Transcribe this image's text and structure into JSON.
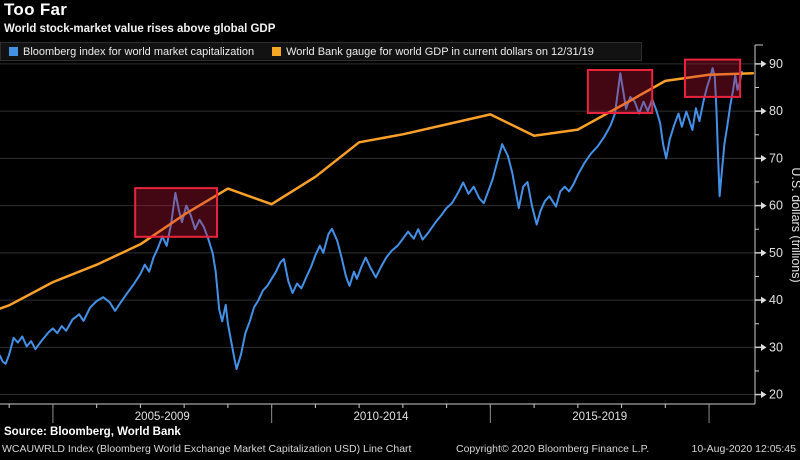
{
  "header": {
    "title": "Too Far",
    "subtitle": "World stock-market value rises above global GDP"
  },
  "legend": {
    "items": [
      {
        "label": "Bloomberg index for world market capitalization",
        "color": "#4490e6"
      },
      {
        "label": "World Bank gauge for world GDP in current dollars on 12/31/19",
        "color": "#f5a623"
      }
    ]
  },
  "footer": {
    "source": "Source: Bloomberg, World Bank",
    "description": "WCAUWRLD Index (Bloomberg World Exchange Market Capitalization USD) Line Chart",
    "copyright": "Copyright© 2020 Bloomberg Finance L.P.",
    "timestamp": "10-Aug-2020 12:05:45"
  },
  "colors": {
    "background": "#000000",
    "grid": "#2f2f2f",
    "axis": "#cccccc",
    "tick_text": "#e0e0e0",
    "separator": "#8a8a8a",
    "box_stroke": "#e8243c",
    "box_fill": "rgba(205,22,56,0.32)"
  },
  "chart_data": {
    "type": "line",
    "title": "Too Far",
    "subtitle": "World stock-market value rises above global GDP",
    "ylabel": "U.S. dollars (trillions)",
    "grid": true,
    "legend_position": "top",
    "x_domain": [
      2003.79,
      2021.05
    ],
    "ylim": [
      18,
      94
    ],
    "y_ticks": [
      20,
      30,
      40,
      50,
      60,
      70,
      80,
      90
    ],
    "y_minor_ticks": [
      25,
      35,
      45,
      55,
      65,
      75,
      85
    ],
    "x_axis": {
      "separators": [
        2005,
        2010,
        2015,
        2020
      ],
      "year_ticks": [
        2004,
        2005,
        2006,
        2007,
        2008,
        2009,
        2010,
        2011,
        2012,
        2013,
        2014,
        2015,
        2016,
        2017,
        2018,
        2019,
        2020
      ],
      "periods": [
        {
          "label": "2005-2009",
          "start": 2005,
          "end": 2010
        },
        {
          "label": "2010-2014",
          "start": 2010,
          "end": 2015
        },
        {
          "label": "2015-2019",
          "start": 2015,
          "end": 2020
        }
      ]
    },
    "highlight_boxes": [
      {
        "x0": 2006.88,
        "x1": 2008.75,
        "y0": 53.4,
        "y1": 63.7
      },
      {
        "x0": 2017.23,
        "x1": 2018.7,
        "y0": 79.6,
        "y1": 88.7
      },
      {
        "x0": 2019.45,
        "x1": 2020.71,
        "y0": 83.0,
        "y1": 90.9
      }
    ],
    "series": [
      {
        "name": "Bloomberg index for world market capitalization",
        "color": "#4490e6",
        "width": 2,
        "points": [
          [
            2003.79,
            28.2
          ],
          [
            2003.85,
            27.0
          ],
          [
            2003.92,
            26.5
          ],
          [
            2004.0,
            28.5
          ],
          [
            2004.1,
            32.0
          ],
          [
            2004.2,
            31.0
          ],
          [
            2004.3,
            32.3
          ],
          [
            2004.4,
            30.2
          ],
          [
            2004.5,
            31.3
          ],
          [
            2004.6,
            29.6
          ],
          [
            2004.75,
            31.5
          ],
          [
            2004.9,
            33.2
          ],
          [
            2005.0,
            34.0
          ],
          [
            2005.1,
            33.0
          ],
          [
            2005.2,
            34.5
          ],
          [
            2005.3,
            33.5
          ],
          [
            2005.45,
            35.9
          ],
          [
            2005.6,
            37.0
          ],
          [
            2005.7,
            35.6
          ],
          [
            2005.85,
            38.4
          ],
          [
            2006.0,
            39.8
          ],
          [
            2006.15,
            40.6
          ],
          [
            2006.3,
            39.5
          ],
          [
            2006.42,
            37.7
          ],
          [
            2006.55,
            39.5
          ],
          [
            2006.7,
            41.5
          ],
          [
            2006.85,
            43.4
          ],
          [
            2007.0,
            45.5
          ],
          [
            2007.1,
            47.5
          ],
          [
            2007.2,
            46.0
          ],
          [
            2007.3,
            49.0
          ],
          [
            2007.4,
            51.0
          ],
          [
            2007.5,
            53.5
          ],
          [
            2007.6,
            51.5
          ],
          [
            2007.7,
            56.0
          ],
          [
            2007.8,
            62.7
          ],
          [
            2007.88,
            59.0
          ],
          [
            2007.95,
            56.5
          ],
          [
            2008.05,
            60.0
          ],
          [
            2008.15,
            58.0
          ],
          [
            2008.25,
            55.0
          ],
          [
            2008.35,
            57.0
          ],
          [
            2008.45,
            55.5
          ],
          [
            2008.55,
            53.0
          ],
          [
            2008.65,
            50.0
          ],
          [
            2008.72,
            46.0
          ],
          [
            2008.8,
            38.0
          ],
          [
            2008.87,
            35.5
          ],
          [
            2008.95,
            39.0
          ],
          [
            2009.0,
            35.0
          ],
          [
            2009.08,
            31.0
          ],
          [
            2009.15,
            27.5
          ],
          [
            2009.2,
            25.4
          ],
          [
            2009.3,
            28.5
          ],
          [
            2009.4,
            33.0
          ],
          [
            2009.5,
            35.5
          ],
          [
            2009.6,
            38.5
          ],
          [
            2009.7,
            40.0
          ],
          [
            2009.8,
            42.0
          ],
          [
            2009.9,
            43.0
          ],
          [
            2010.0,
            44.5
          ],
          [
            2010.1,
            46.0
          ],
          [
            2010.2,
            48.0
          ],
          [
            2010.28,
            48.7
          ],
          [
            2010.38,
            44.0
          ],
          [
            2010.48,
            41.5
          ],
          [
            2010.58,
            43.5
          ],
          [
            2010.68,
            42.5
          ],
          [
            2010.8,
            45.0
          ],
          [
            2010.9,
            47.0
          ],
          [
            2011.0,
            49.5
          ],
          [
            2011.1,
            51.5
          ],
          [
            2011.18,
            50.0
          ],
          [
            2011.3,
            54.0
          ],
          [
            2011.38,
            55.1
          ],
          [
            2011.5,
            52.5
          ],
          [
            2011.6,
            49.0
          ],
          [
            2011.7,
            45.0
          ],
          [
            2011.78,
            43.0
          ],
          [
            2011.88,
            46.0
          ],
          [
            2011.95,
            44.5
          ],
          [
            2012.05,
            47.0
          ],
          [
            2012.15,
            49.0
          ],
          [
            2012.25,
            47.0
          ],
          [
            2012.38,
            44.8
          ],
          [
            2012.5,
            47.0
          ],
          [
            2012.62,
            49.0
          ],
          [
            2012.75,
            50.5
          ],
          [
            2012.88,
            51.5
          ],
          [
            2013.0,
            53.0
          ],
          [
            2013.12,
            54.5
          ],
          [
            2013.25,
            53.0
          ],
          [
            2013.35,
            55.0
          ],
          [
            2013.45,
            52.8
          ],
          [
            2013.6,
            54.5
          ],
          [
            2013.75,
            56.5
          ],
          [
            2013.88,
            58.0
          ],
          [
            2014.0,
            59.5
          ],
          [
            2014.12,
            60.5
          ],
          [
            2014.25,
            62.5
          ],
          [
            2014.38,
            64.9
          ],
          [
            2014.5,
            62.5
          ],
          [
            2014.62,
            64.0
          ],
          [
            2014.75,
            61.5
          ],
          [
            2014.85,
            60.5
          ],
          [
            2014.95,
            63.0
          ],
          [
            2015.05,
            65.5
          ],
          [
            2015.15,
            69.0
          ],
          [
            2015.27,
            73.0
          ],
          [
            2015.4,
            70.5
          ],
          [
            2015.5,
            67.0
          ],
          [
            2015.58,
            63.0
          ],
          [
            2015.65,
            59.5
          ],
          [
            2015.75,
            64.0
          ],
          [
            2015.85,
            65.0
          ],
          [
            2015.95,
            60.0
          ],
          [
            2016.06,
            56.0
          ],
          [
            2016.15,
            59.0
          ],
          [
            2016.25,
            61.0
          ],
          [
            2016.35,
            62.0
          ],
          [
            2016.45,
            60.5
          ],
          [
            2016.5,
            59.8
          ],
          [
            2016.6,
            63.0
          ],
          [
            2016.7,
            64.0
          ],
          [
            2016.8,
            63.0
          ],
          [
            2016.9,
            64.5
          ],
          [
            2017.0,
            66.5
          ],
          [
            2017.15,
            69.0
          ],
          [
            2017.3,
            71.0
          ],
          [
            2017.45,
            72.5
          ],
          [
            2017.6,
            74.5
          ],
          [
            2017.75,
            77.0
          ],
          [
            2017.85,
            79.5
          ],
          [
            2017.97,
            88.0
          ],
          [
            2018.05,
            83.5
          ],
          [
            2018.1,
            80.5
          ],
          [
            2018.2,
            83.0
          ],
          [
            2018.3,
            82.0
          ],
          [
            2018.4,
            79.5
          ],
          [
            2018.5,
            82.0
          ],
          [
            2018.6,
            80.0
          ],
          [
            2018.7,
            82.5
          ],
          [
            2018.8,
            80.0
          ],
          [
            2018.88,
            77.5
          ],
          [
            2018.95,
            73.0
          ],
          [
            2019.02,
            70.0
          ],
          [
            2019.1,
            74.0
          ],
          [
            2019.2,
            77.0
          ],
          [
            2019.3,
            79.5
          ],
          [
            2019.38,
            76.7
          ],
          [
            2019.48,
            79.9
          ],
          [
            2019.55,
            78.0
          ],
          [
            2019.62,
            76.0
          ],
          [
            2019.7,
            80.6
          ],
          [
            2019.78,
            77.9
          ],
          [
            2019.88,
            82.4
          ],
          [
            2019.95,
            85.0
          ],
          [
            2020.02,
            87.0
          ],
          [
            2020.08,
            89.1
          ],
          [
            2020.13,
            87.2
          ],
          [
            2020.17,
            80.0
          ],
          [
            2020.2,
            72.0
          ],
          [
            2020.24,
            62.0
          ],
          [
            2020.3,
            68.0
          ],
          [
            2020.35,
            73.0
          ],
          [
            2020.42,
            77.0
          ],
          [
            2020.48,
            81.0
          ],
          [
            2020.55,
            84.5
          ],
          [
            2020.6,
            87.6
          ],
          [
            2020.65,
            84.5
          ],
          [
            2020.7,
            86.0
          ],
          [
            2020.75,
            88.3
          ]
        ]
      },
      {
        "name": "World Bank gauge for world GDP in current dollars on 12/31/19",
        "color": "#f9a028",
        "width": 2.5,
        "points": [
          [
            2003.79,
            38.2
          ],
          [
            2004.0,
            38.9
          ],
          [
            2005.0,
            43.8
          ],
          [
            2006.0,
            47.5
          ],
          [
            2007.0,
            51.8
          ],
          [
            2008.0,
            58.1
          ],
          [
            2009.0,
            63.6
          ],
          [
            2010.0,
            60.3
          ],
          [
            2011.0,
            66.1
          ],
          [
            2012.0,
            73.4
          ],
          [
            2013.0,
            75.1
          ],
          [
            2014.0,
            77.2
          ],
          [
            2015.0,
            79.3
          ],
          [
            2016.0,
            74.8
          ],
          [
            2017.0,
            76.1
          ],
          [
            2018.0,
            81.2
          ],
          [
            2019.0,
            86.4
          ],
          [
            2020.0,
            87.7
          ],
          [
            2021.0,
            88.0
          ]
        ]
      }
    ]
  }
}
